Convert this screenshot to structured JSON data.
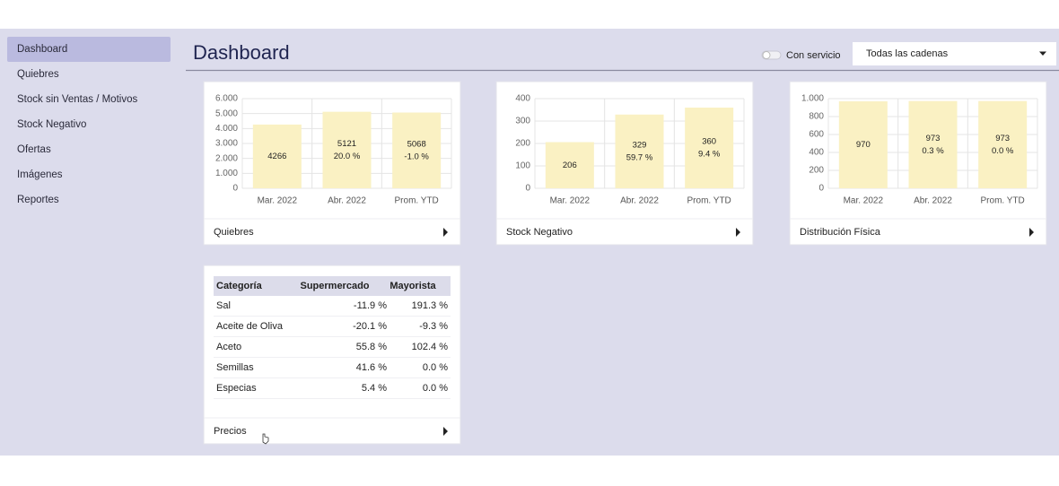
{
  "sidebar": {
    "items": [
      "Dashboard",
      "Quiebres",
      "Stock sin Ventas / Motivos",
      "Stock Negativo",
      "Ofertas",
      "Imágenes",
      "Reportes"
    ],
    "selected": 0
  },
  "header": {
    "title": "Dashboard",
    "toggle_label": "Con servicio",
    "dropdown": "Todas las cadenas"
  },
  "chart_data": [
    {
      "type": "bar",
      "title": "Quiebres",
      "categories": [
        "Mar. 2022",
        "Abr. 2022",
        "Prom. YTD"
      ],
      "values": [
        4266,
        5121,
        5068
      ],
      "change_labels": [
        null,
        "20.0 %",
        "-1.0 %"
      ],
      "color": "#faf1c3",
      "ylim": [
        0,
        6000
      ],
      "yticks": [
        0,
        {
          "value": 1000,
          "label": "1.000"
        },
        {
          "value": 2000,
          "label": "2.000"
        },
        {
          "value": 3000,
          "label": "3.000"
        },
        {
          "value": 4000,
          "label": "4.000"
        },
        {
          "value": 5000,
          "label": "5.000"
        },
        {
          "value": 6000,
          "label": "6.000"
        }
      ],
      "grid": true
    },
    {
      "type": "bar",
      "title": "Stock Negativo",
      "categories": [
        "Mar. 2022",
        "Abr. 2022",
        "Prom. YTD"
      ],
      "values": [
        206,
        329,
        360
      ],
      "change_labels": [
        null,
        "59.7 %",
        "9.4 %"
      ],
      "color": "#faf1c3",
      "ylim": [
        0,
        400
      ],
      "yticks": [
        0,
        100,
        200,
        300,
        400
      ],
      "grid": true
    },
    {
      "type": "bar",
      "title": "Distribución Física",
      "categories": [
        "Mar. 2022",
        "Abr. 2022",
        "Prom. YTD"
      ],
      "values": [
        970,
        973,
        973
      ],
      "change_labels": [
        null,
        "0.3 %",
        "0.0 %"
      ],
      "color": "#faf1c3",
      "ylim": [
        0,
        1000
      ],
      "yticks": [
        0,
        200,
        400,
        600,
        800,
        {
          "value": 1000,
          "label": "1.000"
        }
      ],
      "grid": true
    }
  ],
  "table": {
    "title": "Precios",
    "headers": [
      "Categoría",
      "Supermercado",
      "Mayorista"
    ],
    "rows": [
      [
        "Sal",
        "-11.9 %",
        "191.3 %"
      ],
      [
        "Aceite de Oliva",
        "-20.1 %",
        "-9.3 %"
      ],
      [
        "Aceto",
        "55.8 %",
        "102.4 %"
      ],
      [
        "Semillas",
        "41.6 %",
        "0.0 %"
      ],
      [
        "Especias",
        "5.4 %",
        "0.0 %"
      ]
    ]
  }
}
